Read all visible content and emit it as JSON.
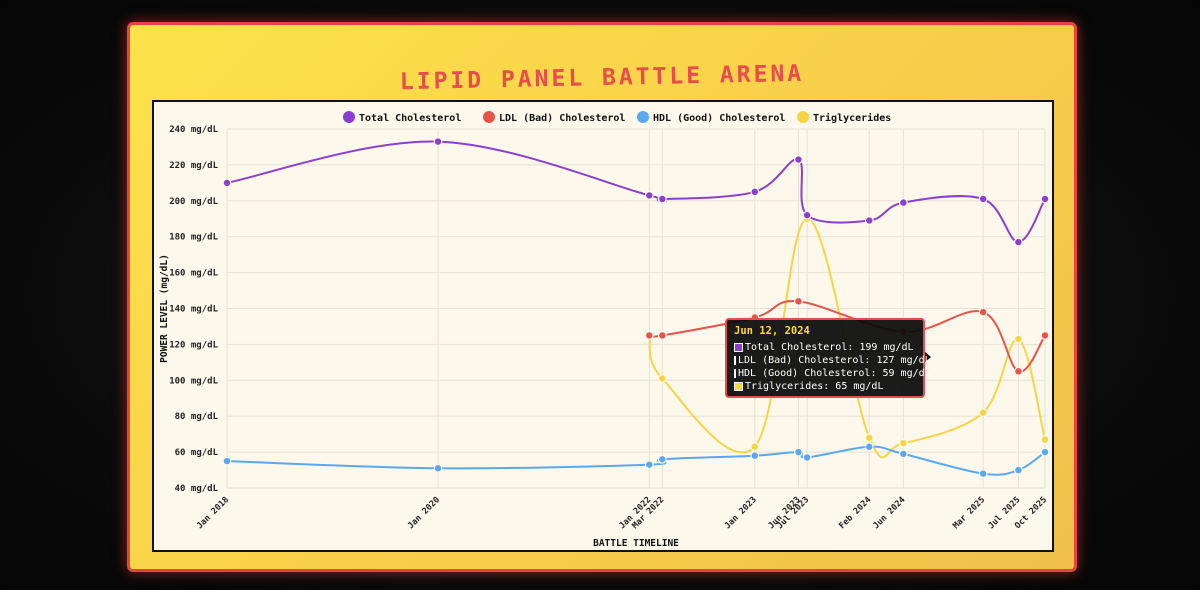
{
  "title": "LIPID PANEL BATTLE ARENA",
  "chart_data": {
    "type": "line",
    "xlabel": "BATTLE TIMELINE",
    "ylabel": "POWER LEVEL (mg/dL)",
    "ylim": [
      40,
      240
    ],
    "y_ticks": [
      40,
      60,
      80,
      100,
      120,
      140,
      160,
      180,
      200,
      220,
      240
    ],
    "y_tick_suffix": " mg/dL",
    "grid": true,
    "legend_position": "top",
    "x_dates": [
      "2018-01-15",
      "2020-01-15",
      "2022-01-15",
      "2022-03-01",
      "2023-01-15",
      "2023-06-15",
      "2023-07-15",
      "2024-02-15",
      "2024-06-12",
      "2025-03-15",
      "2025-07-15",
      "2025-10-15"
    ],
    "x_tick_labels": [
      "Jan 2018",
      "Jan 2020",
      "Jan 2022",
      "Mar 2022",
      "Jan 2023",
      "Jun 2023",
      "Jul 2023",
      "Feb 2024",
      "Jun 2024",
      "Mar 2025",
      "Jul 2025",
      "Oct 2025"
    ],
    "series": [
      {
        "name": "Total Cholesterol",
        "color": "#8b3fd1",
        "values": [
          210,
          233,
          203,
          201,
          205,
          223,
          192,
          189,
          199,
          201,
          177,
          201
        ]
      },
      {
        "name": "LDL (Bad) Cholesterol",
        "color": "#e8534a",
        "values": [
          null,
          null,
          125,
          125,
          135,
          144,
          null,
          null,
          127,
          138,
          105,
          125
        ]
      },
      {
        "name": "HDL (Good) Cholesterol",
        "color": "#5aa8f0",
        "values": [
          55,
          51,
          53,
          56,
          58,
          60,
          57,
          63,
          59,
          48,
          50,
          60
        ]
      },
      {
        "name": "Triglycerides",
        "color": "#f6d545",
        "values": [
          null,
          null,
          125,
          101,
          63,
          null,
          190,
          68,
          65,
          82,
          123,
          67
        ]
      }
    ]
  },
  "tooltip": {
    "title": "Jun 12, 2024",
    "rows": [
      {
        "text": "Total Cholesterol: 199 mg/dL",
        "color": "#8b3fd1"
      },
      {
        "text": "LDL (Bad) Cholesterol: 127 mg/dL",
        "color": "#e8534a"
      },
      {
        "text": "HDL (Good) Cholesterol: 59 mg/dL",
        "color": "#5aa8f0"
      },
      {
        "text": "Triglycerides: 65 mg/dL",
        "color": "#f6d545"
      }
    ]
  }
}
